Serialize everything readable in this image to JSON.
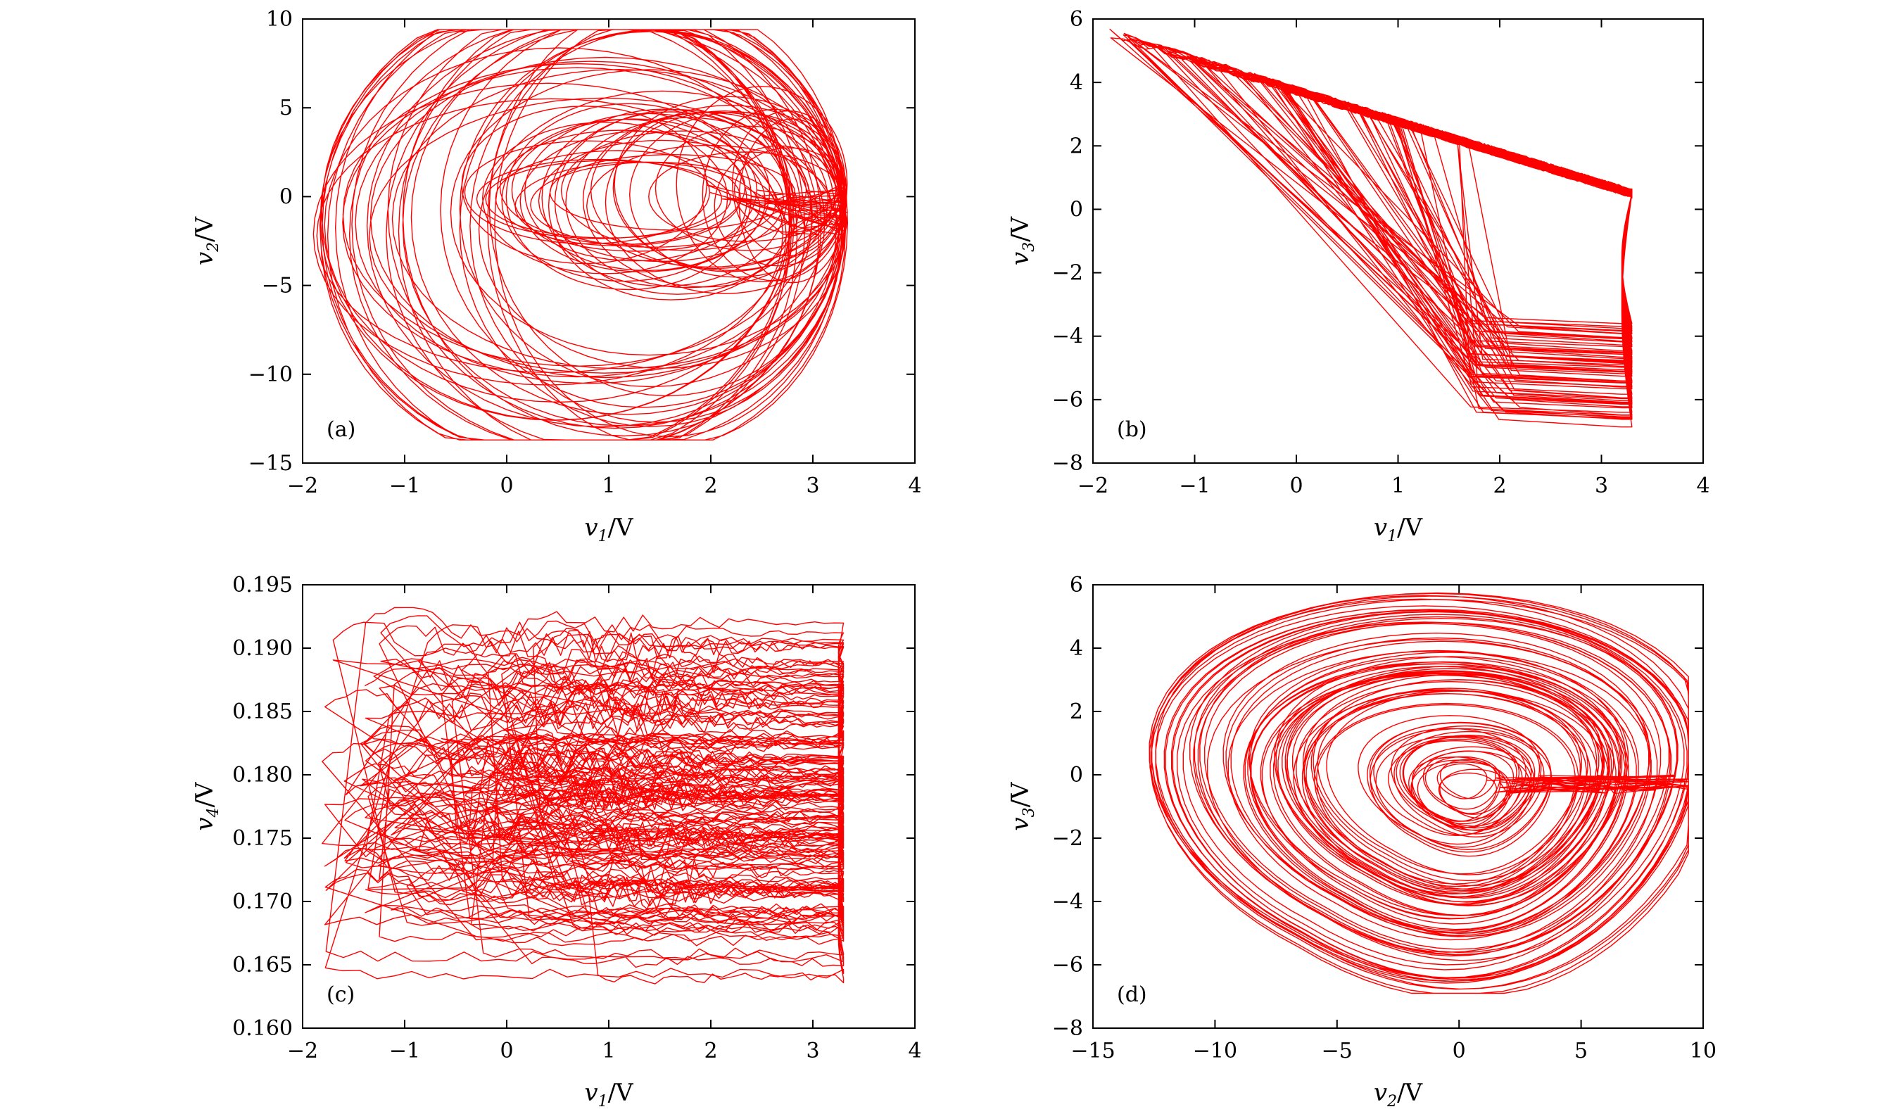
{
  "colors": {
    "trace": "#ff0000",
    "axes": "#000000"
  },
  "chart_data": [
    {
      "panel_label": "(a)",
      "type": "line",
      "subtype": "phase-portrait (chaotic attractor, v1-v2 plane)",
      "xlabel": {
        "var": "v",
        "sub": "1",
        "unit": "/V"
      },
      "ylabel": {
        "var": "v",
        "sub": "2",
        "unit": "/V"
      },
      "xlim": [
        -2,
        4
      ],
      "ylim": [
        -15,
        10
      ],
      "xticks": [
        -2,
        -1,
        0,
        1,
        2,
        3,
        4
      ],
      "yticks": [
        -15,
        -10,
        -5,
        0,
        5,
        10
      ],
      "xtick_labels": [
        "−2",
        "−1",
        "0",
        "1",
        "2",
        "3",
        "4"
      ],
      "ytick_labels": [
        "−15",
        "−10",
        "−5",
        "0",
        "5",
        "10"
      ],
      "grid": false,
      "series": [
        {
          "x_extent": [
            -1.9,
            3.35
          ],
          "y_extent": [
            -13.7,
            9.4
          ],
          "approx_points": [
            [
              -1.9,
              0.2
            ],
            [
              -1.2,
              6.2
            ],
            [
              0.2,
              9.3
            ],
            [
              1.3,
              7.5
            ],
            [
              3.3,
              3.0
            ],
            [
              3.35,
              0.0
            ],
            [
              2.7,
              -8.5
            ],
            [
              0.5,
              -13.6
            ],
            [
              -1.4,
              -7.5
            ],
            [
              -1.9,
              0.2
            ]
          ]
        }
      ]
    },
    {
      "panel_label": "(b)",
      "type": "line",
      "subtype": "phase-portrait (chaotic attractor, v1-v3 plane)",
      "xlabel": {
        "var": "v",
        "sub": "1",
        "unit": "/V"
      },
      "ylabel": {
        "var": "v",
        "sub": "3",
        "unit": "/V"
      },
      "xlim": [
        -2,
        4
      ],
      "ylim": [
        -8,
        6
      ],
      "xticks": [
        -2,
        -1,
        0,
        1,
        2,
        3,
        4
      ],
      "yticks": [
        -8,
        -6,
        -4,
        -2,
        0,
        2,
        4,
        6
      ],
      "xtick_labels": [
        "−2",
        "−1",
        "0",
        "1",
        "2",
        "3",
        "4"
      ],
      "ytick_labels": [
        "−8",
        "−6",
        "−4",
        "−2",
        "0",
        "2",
        "4",
        "6"
      ],
      "grid": false,
      "series": [
        {
          "x_extent": [
            -1.9,
            3.35
          ],
          "y_extent": [
            -6.9,
            5.8
          ],
          "approx_points": [
            [
              -1.9,
              5.7
            ],
            [
              -1.5,
              5.3
            ],
            [
              3.2,
              0.5
            ],
            [
              3.35,
              -3.5
            ],
            [
              3.2,
              -6.9
            ],
            [
              1.9,
              -3.5
            ],
            [
              1.7,
              -3.8
            ],
            [
              -1.9,
              5.7
            ]
          ]
        }
      ]
    },
    {
      "panel_label": "(c)",
      "type": "line",
      "subtype": "phase-portrait (chaotic attractor, v1-v4 plane)",
      "xlabel": {
        "var": "v",
        "sub": "1",
        "unit": "/V"
      },
      "ylabel": {
        "var": "v",
        "sub": "4",
        "unit": "/V"
      },
      "xlim": [
        -2,
        4
      ],
      "ylim": [
        0.16,
        0.195
      ],
      "xticks": [
        -2,
        -1,
        0,
        1,
        2,
        3,
        4
      ],
      "yticks": [
        0.16,
        0.165,
        0.17,
        0.175,
        0.18,
        0.185,
        0.19,
        0.195
      ],
      "xtick_labels": [
        "−2",
        "−1",
        "0",
        "1",
        "2",
        "3",
        "4"
      ],
      "ytick_labels": [
        "0.160",
        "0.165",
        "0.170",
        "0.175",
        "0.180",
        "0.185",
        "0.190",
        "0.195"
      ],
      "grid": false,
      "series": [
        {
          "x_extent": [
            -1.9,
            3.35
          ],
          "y_extent": [
            0.1638,
            0.1932
          ],
          "approx_points": [
            [
              -1.9,
              0.1875
            ],
            [
              -1.9,
              0.1905
            ],
            [
              3.2,
              0.1932
            ],
            [
              3.35,
              0.18
            ],
            [
              3.2,
              0.169
            ],
            [
              2.9,
              0.1638
            ],
            [
              2.7,
              0.165
            ],
            [
              -1.8,
              0.1809
            ]
          ]
        }
      ]
    },
    {
      "panel_label": "(d)",
      "type": "line",
      "subtype": "phase-portrait (chaotic attractor, v2-v3 plane)",
      "xlabel": {
        "var": "v",
        "sub": "2",
        "unit": "/V"
      },
      "ylabel": {
        "var": "v",
        "sub": "3",
        "unit": "/V"
      },
      "xlim": [
        -15,
        10
      ],
      "ylim": [
        -8,
        6
      ],
      "xticks": [
        -15,
        -10,
        -5,
        0,
        5,
        10
      ],
      "yticks": [
        -8,
        -6,
        -4,
        -2,
        0,
        2,
        4,
        6
      ],
      "xtick_labels": [
        "−15",
        "−10",
        "−5",
        "0",
        "5",
        "10"
      ],
      "ytick_labels": [
        "−8",
        "−6",
        "−4",
        "−2",
        "0",
        "2",
        "4",
        "6"
      ],
      "grid": false,
      "series": [
        {
          "x_extent": [
            -13.7,
            9.4
          ],
          "y_extent": [
            -6.9,
            5.8
          ],
          "approx_points": [
            [
              -13.5,
              0.5
            ],
            [
              -10,
              4.5
            ],
            [
              -3,
              5.8
            ],
            [
              6,
              4.0
            ],
            [
              9.4,
              0.0
            ],
            [
              6,
              -3.2
            ],
            [
              0.5,
              -3.5
            ],
            [
              -4.2,
              -6.9
            ],
            [
              -10,
              -3.5
            ]
          ]
        }
      ]
    }
  ]
}
